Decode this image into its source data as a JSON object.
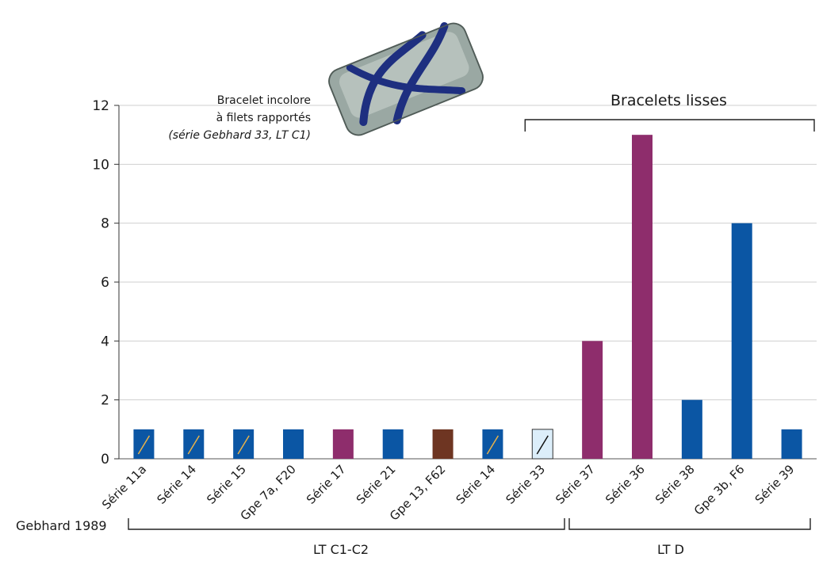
{
  "chart_data": {
    "type": "bar",
    "categories": [
      "Série 11a",
      "Série 14",
      "Série 15",
      "Gpe 7a, F20",
      "Série 17",
      "Série 21",
      "Gpe 13, F62",
      "Série 14",
      "Série 33",
      "Série 37",
      "Série 36",
      "Série 38",
      "Gpe 3b, F6",
      "Série 39"
    ],
    "values": [
      1,
      1,
      1,
      1,
      1,
      1,
      1,
      1,
      1,
      4,
      11,
      2,
      8,
      1
    ],
    "bar_colors": [
      "#0b56a4",
      "#0b56a4",
      "#0b56a4",
      "#0b56a4",
      "#8e2d6c",
      "#0b56a4",
      "#6e3522",
      "#0b56a4",
      "#dceefa",
      "#8e2d6c",
      "#8e2d6c",
      "#0b56a4",
      "#0b56a4",
      "#0b56a4"
    ],
    "hatched": [
      true,
      true,
      true,
      false,
      false,
      false,
      false,
      true,
      true,
      false,
      false,
      false,
      false,
      false
    ],
    "ylim": [
      0,
      12
    ],
    "yticks": [
      0,
      2,
      4,
      6,
      8,
      10,
      12
    ],
    "grid": true,
    "title": "",
    "xlabel": "",
    "ylabel": ""
  },
  "annotation": {
    "line1": "Bracelet incolore",
    "line2": "à filets rapportés",
    "line3": "(série Gebhard 33, LT C1)"
  },
  "bracket_title": "Bracelets lisses",
  "reference_label": "Gebhard 1989",
  "groups": {
    "left": "LT C1-C2",
    "right": "LT D"
  },
  "colors": {
    "blue": "#0b56a4",
    "purple": "#8e2d6c",
    "brown": "#6e3522",
    "light": "#dceefa",
    "hatch_on_blue": "#e8b24a"
  }
}
